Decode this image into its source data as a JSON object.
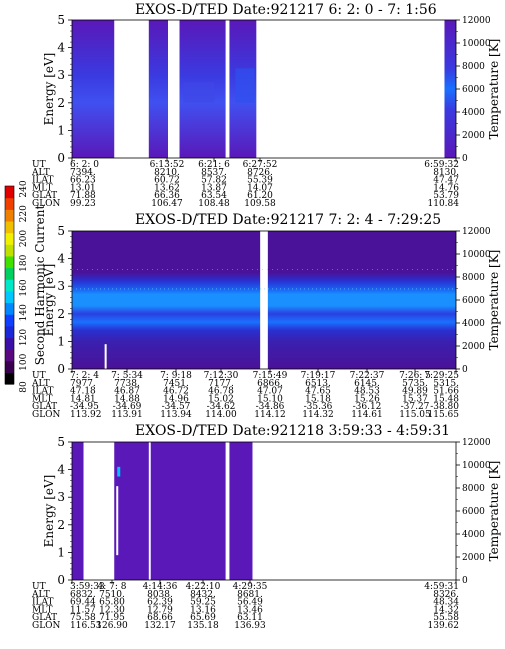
{
  "colorbar": {
    "label": "Second Harmonic Current",
    "ticks": [
      "80",
      "100",
      "120",
      "140",
      "160",
      "180",
      "200",
      "220",
      "240"
    ],
    "colors": [
      "#000000",
      "#3a0050",
      "#5a0a80",
      "#3a10a8",
      "#1a28d8",
      "#1040ff",
      "#0088ff",
      "#00c8ff",
      "#00e8c8",
      "#00d060",
      "#40e000",
      "#c0e000",
      "#f0f000",
      "#f0c000",
      "#f08000",
      "#f04000",
      "#e00000"
    ]
  },
  "panels": [
    {
      "title": "EXOS-D/TED   Date:921217  6: 2: 0 - 7: 1:56",
      "ylabel": "Energy [eV]",
      "ylabel_right": "Temperature [K]",
      "yticks": [
        "0",
        "1",
        "2",
        "3",
        "4",
        "5"
      ],
      "yticks_right": [
        "0",
        "2000",
        "4000",
        "6000",
        "8000",
        "10000",
        "12000"
      ],
      "row_labels": [
        "UT",
        "ALT",
        "ILAT",
        "MLT",
        "GLAT",
        "GLON"
      ],
      "columns": [
        [
          "6: 2: 0",
          "7394.",
          "66.23",
          "13.01",
          "71.88",
          "99.23"
        ],
        [
          "6:13:52",
          "8210.",
          "60.72",
          "13.62",
          "66.36",
          "106.47"
        ],
        [
          "6:21: 6",
          "8537.",
          "57.82",
          "13.87",
          "63.54",
          "108.48"
        ],
        [
          "6:27:52",
          "8726.",
          "55.39",
          "14.07",
          "61.20",
          "109.58"
        ],
        [
          "6:59:32",
          "8130.",
          "47.47",
          "14.76",
          "53.79",
          "110.84"
        ]
      ]
    },
    {
      "title": "EXOS-D/TED   Date:921217  7: 2: 4 - 7:29:25",
      "ylabel": "Energy [eV]",
      "ylabel_right": "Temperature [K]",
      "yticks": [
        "0",
        "1",
        "2",
        "3",
        "4",
        "5"
      ],
      "yticks_right": [
        "0",
        "2000",
        "4000",
        "6000",
        "8000",
        "10000",
        "12000"
      ],
      "row_labels": [
        "UT",
        "ALT",
        "ILAT",
        "MLT",
        "GLAT",
        "GLON"
      ],
      "columns": [
        [
          "7: 2: 4",
          "7977.",
          "47.18",
          "14.81",
          "-34.95",
          "113.92"
        ],
        [
          "7: 5:34",
          "7738.",
          "46.87",
          "14.88",
          "-34.69",
          "113.91"
        ],
        [
          "7: 9:18",
          "7451.",
          "46.72",
          "14.96",
          "-34.57",
          "113.94"
        ],
        [
          "7:12:30",
          "7177.",
          "46.78",
          "15.02",
          "-34.62",
          "114.00"
        ],
        [
          "7:15:49",
          "6866.",
          "47.07",
          "15.10",
          "-34.86",
          "114.12"
        ],
        [
          "7:19:17",
          "6513.",
          "47.65",
          "15.18",
          "-35.36",
          "114.32"
        ],
        [
          "7:22:37",
          "6145.",
          "48.53",
          "15.26",
          "-36.12",
          "114.61"
        ],
        [
          "7:26: 5",
          "5735.",
          "49.89",
          "15.37",
          "-37.27",
          "115.05"
        ],
        [
          "7:29:25",
          "5315.",
          "51.66",
          "15.48",
          "-38.80",
          "115.65"
        ]
      ]
    },
    {
      "title": "EXOS-D/TED   Date:921218  3:59:33 - 4:59:31",
      "ylabel": "Energy [eV]",
      "ylabel_right": "Temperature [K]",
      "yticks": [
        "0",
        "1",
        "2",
        "3",
        "4",
        "5"
      ],
      "yticks_right": [
        "0",
        "2000",
        "4000",
        "6000",
        "8000",
        "10000",
        "12000"
      ],
      "row_labels": [
        "UT",
        "ALT",
        "ILAT",
        "MLT",
        "GLAT",
        "GLON"
      ],
      "columns": [
        [
          "3:59:33",
          "6832.",
          "69.44",
          "11.57",
          "75.58",
          "116.53"
        ],
        [
          "4: 7: 8",
          "7510.",
          "65.80",
          "12.30",
          "71.95",
          "126.90"
        ],
        [
          "4:14:36",
          "8038.",
          "62.39",
          "12.79",
          "68.66",
          "132.17"
        ],
        [
          "4:22:10",
          "8432.",
          "59.25",
          "13.16",
          "65.69",
          "135.18"
        ],
        [
          "4:29:35",
          "8681.",
          "56.49",
          "13.46",
          "63.11",
          "136.93"
        ],
        [
          "4:59:31",
          "8326.",
          "48.34",
          "14.32",
          "55.58",
          "139.62"
        ]
      ]
    }
  ],
  "chart_data": [
    {
      "type": "heatmap",
      "title": "EXOS-D/TED   Date:921217  6: 2: 0 - 7: 1:56",
      "ylabel": "Energy [eV]",
      "ylabel_right": "Temperature [K]",
      "ylim": [
        0,
        5
      ],
      "ylim_right": [
        0,
        12000
      ],
      "x_labels": [
        "6: 2: 0",
        "6:13:52",
        "6:21: 6",
        "6:27:52",
        "6:59:32"
      ],
      "data_intervals": [
        [
          0.0,
          0.11
        ],
        [
          0.2,
          0.25
        ],
        [
          0.28,
          0.4
        ],
        [
          0.41,
          0.48
        ],
        [
          0.97,
          1.0
        ]
      ],
      "colorbar_label": "Second Harmonic Current",
      "colorbar_range": [
        80,
        240
      ]
    },
    {
      "type": "heatmap",
      "title": "EXOS-D/TED   Date:921217  7: 2: 4 - 7:29:25",
      "ylabel": "Energy [eV]",
      "ylabel_right": "Temperature [K]",
      "ylim": [
        0,
        5
      ],
      "ylim_right": [
        0,
        12000
      ],
      "x_labels": [
        "7: 2: 4",
        "7: 5:34",
        "7: 9:18",
        "7:12:30",
        "7:15:49",
        "7:19:17",
        "7:22:37",
        "7:26: 5",
        "7:29:25"
      ],
      "data_intervals": [
        [
          0.0,
          0.49
        ],
        [
          0.51,
          1.0
        ]
      ],
      "colorbar_label": "Second Harmonic Current",
      "colorbar_range": [
        80,
        240
      ]
    },
    {
      "type": "heatmap",
      "title": "EXOS-D/TED   Date:921218  3:59:33 - 4:59:31",
      "ylabel": "Energy [eV]",
      "ylabel_right": "Temperature [K]",
      "ylim": [
        0,
        5
      ],
      "ylim_right": [
        0,
        12000
      ],
      "x_labels": [
        "3:59:33",
        "4: 7: 8",
        "4:14:36",
        "4:22:10",
        "4:29:35",
        "4:59:31"
      ],
      "data_intervals": [
        [
          0.0,
          0.03
        ],
        [
          0.11,
          0.2
        ],
        [
          0.205,
          0.4
        ],
        [
          0.41,
          0.47
        ]
      ],
      "colorbar_label": "Second Harmonic Current",
      "colorbar_range": [
        80,
        240
      ]
    }
  ]
}
